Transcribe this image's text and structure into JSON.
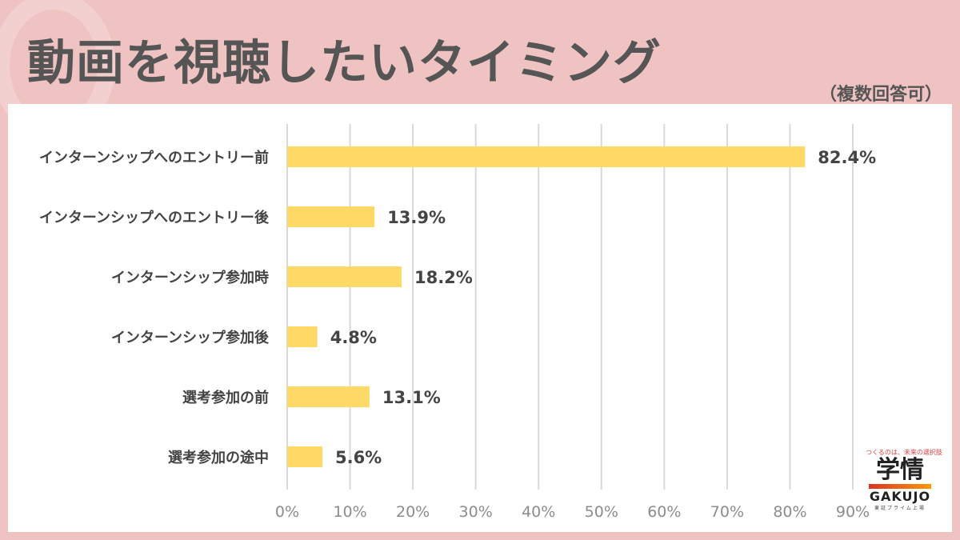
{
  "title": "動画を視聴したいタイミング",
  "note": "（複数回答可）",
  "chart_data": {
    "type": "bar",
    "orientation": "horizontal",
    "categories": [
      "インターンシップへのエントリー前",
      "インターンシップへのエントリー後",
      "インターンシップ参加時",
      "インターンシップ参加後",
      "選考参加の前",
      "選考参加の途中"
    ],
    "values": [
      82.4,
      13.9,
      18.2,
      4.8,
      13.1,
      5.6
    ],
    "data_labels": [
      "82.4%",
      "13.9%",
      "18.2%",
      "4.8%",
      "13.1%",
      "5.6%"
    ],
    "xlim": [
      0,
      90
    ],
    "x_ticks": [
      "0%",
      "10%",
      "20%",
      "30%",
      "40%",
      "50%",
      "60%",
      "70%",
      "80%",
      "90%"
    ],
    "grid": true,
    "bar_color": "#ffd966"
  },
  "logo": {
    "tagline": "つくるのは、未来の選択肢",
    "name": "学情",
    "en": "GAKUJO",
    "sub": "東証プライム上場"
  }
}
